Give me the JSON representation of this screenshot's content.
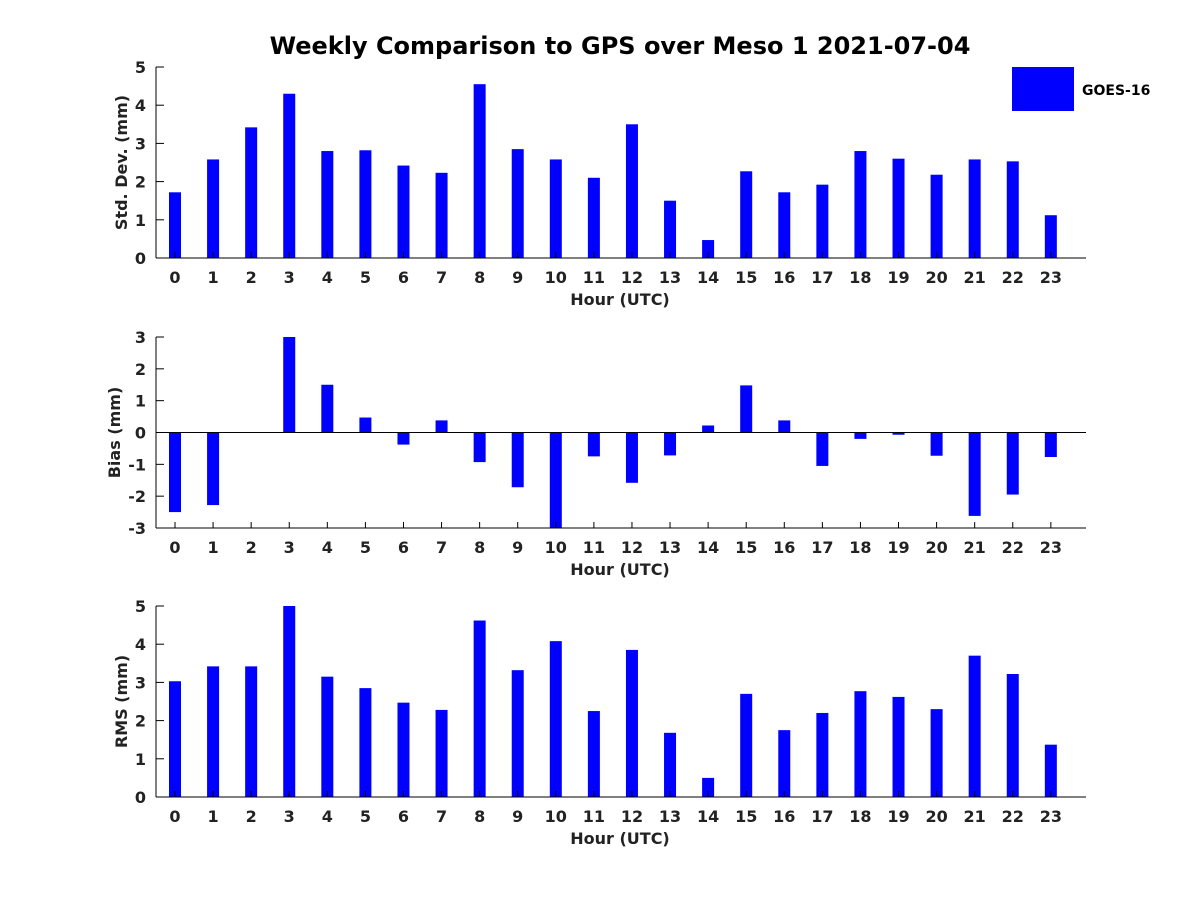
{
  "figure": {
    "title": "Weekly Comparison to GPS over Meso 1 2021-07-04"
  },
  "legend": {
    "label": "GOES-16",
    "color": "#0000ff",
    "placement": "top-right"
  },
  "chart_data": [
    {
      "type": "bar",
      "series_name": "GOES-16",
      "categories": [
        "0",
        "1",
        "2",
        "3",
        "4",
        "5",
        "6",
        "7",
        "8",
        "9",
        "10",
        "11",
        "12",
        "13",
        "14",
        "15",
        "16",
        "17",
        "18",
        "19",
        "20",
        "21",
        "22",
        "23"
      ],
      "values": [
        1.72,
        2.58,
        3.42,
        4.3,
        2.8,
        2.82,
        2.42,
        2.23,
        4.55,
        2.85,
        2.58,
        2.1,
        3.5,
        1.5,
        0.47,
        2.27,
        1.72,
        1.92,
        2.8,
        2.6,
        2.18,
        2.58,
        2.53,
        1.12
      ],
      "xlabel": "Hour (UTC)",
      "ylabel": "Std. Dev. (mm)",
      "ylim": [
        0,
        5
      ],
      "yticks": [
        "0",
        "1",
        "2",
        "3",
        "4",
        "5"
      ],
      "color": "#0000ff"
    },
    {
      "type": "bar",
      "series_name": "GOES-16",
      "categories": [
        "0",
        "1",
        "2",
        "3",
        "4",
        "5",
        "6",
        "7",
        "8",
        "9",
        "10",
        "11",
        "12",
        "13",
        "14",
        "15",
        "16",
        "17",
        "18",
        "19",
        "20",
        "21",
        "22",
        "23"
      ],
      "values": [
        -2.5,
        -2.28,
        null,
        3.0,
        1.5,
        0.47,
        -0.38,
        0.38,
        -0.93,
        -1.72,
        -3.0,
        -0.75,
        -1.58,
        -0.72,
        0.22,
        1.48,
        0.38,
        -1.05,
        -0.2,
        -0.07,
        -0.73,
        -2.62,
        -1.95,
        -0.77
      ],
      "xlabel": "Hour (UTC)",
      "ylabel": "Bias (mm)",
      "ylim": [
        -3,
        3
      ],
      "yticks": [
        "-3",
        "-2",
        "-1",
        "0",
        "1",
        "2",
        "3"
      ],
      "zero_line": true,
      "color": "#0000ff"
    },
    {
      "type": "bar",
      "series_name": "GOES-16",
      "categories": [
        "0",
        "1",
        "2",
        "3",
        "4",
        "5",
        "6",
        "7",
        "8",
        "9",
        "10",
        "11",
        "12",
        "13",
        "14",
        "15",
        "16",
        "17",
        "18",
        "19",
        "20",
        "21",
        "22",
        "23"
      ],
      "values": [
        3.03,
        3.42,
        3.42,
        5.0,
        3.15,
        2.85,
        2.47,
        2.28,
        4.62,
        3.32,
        4.08,
        2.25,
        3.85,
        1.68,
        0.5,
        2.7,
        1.75,
        2.2,
        2.77,
        2.62,
        2.3,
        3.7,
        3.22,
        1.37
      ],
      "xlabel": "Hour (UTC)",
      "ylabel": "RMS (mm)",
      "ylim": [
        0,
        5
      ],
      "yticks": [
        "0",
        "1",
        "2",
        "3",
        "4",
        "5"
      ],
      "color": "#0000ff"
    }
  ]
}
